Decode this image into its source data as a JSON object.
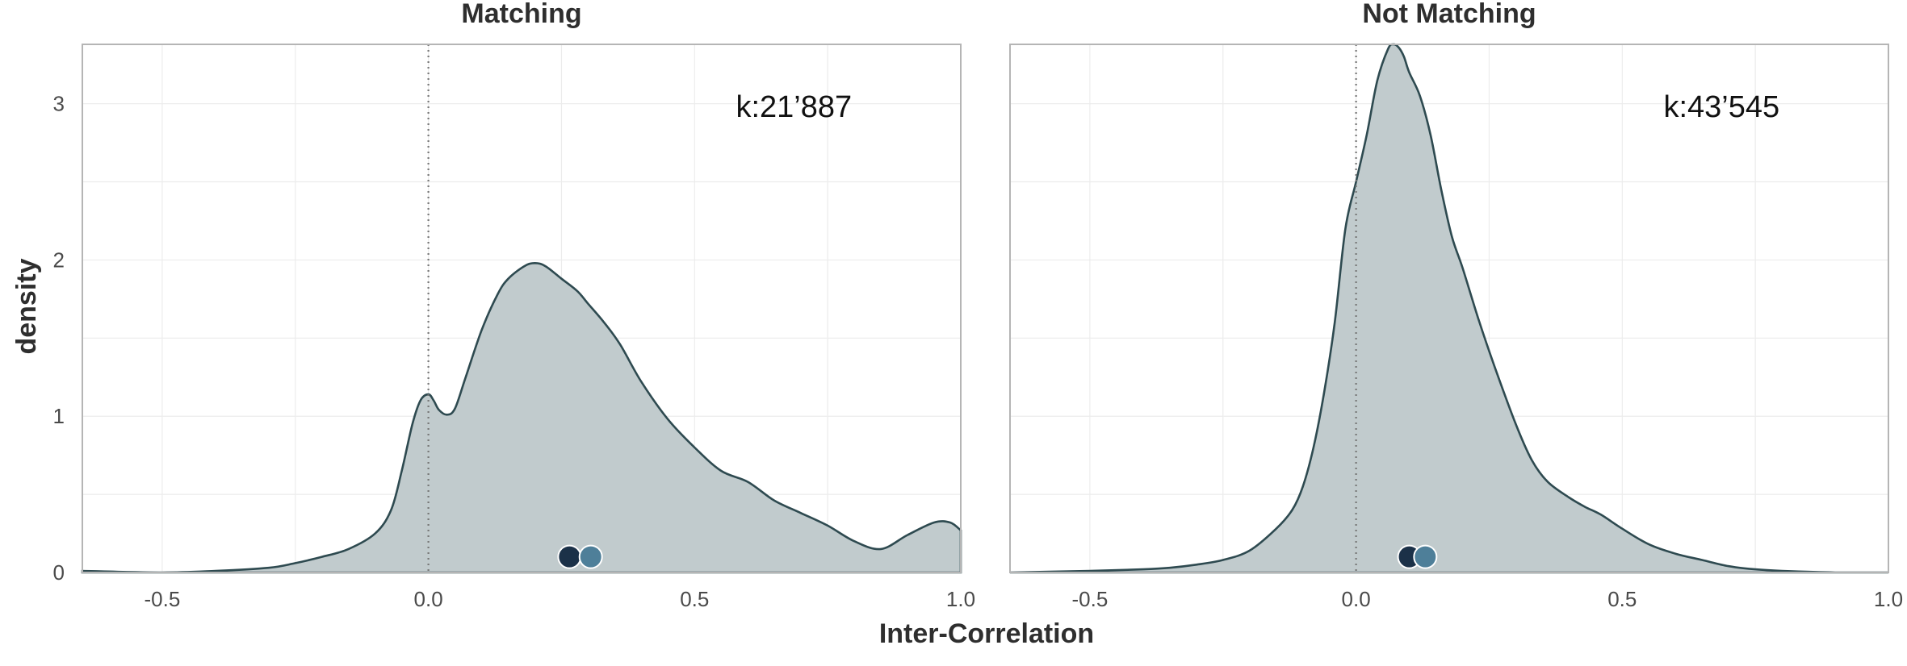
{
  "chart_data": {
    "type": "area",
    "xlabel": "Inter-Correlation",
    "ylabel": "density",
    "xlim": [
      -0.65,
      1.0
    ],
    "ylim": [
      0,
      3.38
    ],
    "x_ticks": [
      "-0.5",
      "0.0",
      "0.5",
      "1.0"
    ],
    "x_tick_values": [
      -0.5,
      0.0,
      0.5,
      1.0
    ],
    "y_ticks": [
      "0",
      "1",
      "2",
      "3"
    ],
    "y_tick_values": [
      0,
      1,
      2,
      3
    ],
    "reference_line": 0.0,
    "grid": true,
    "colors": {
      "fill": "#c1cbcd",
      "line": "#2e4a50",
      "dot_dark": "#1b3148",
      "dot_light": "#4e7f99"
    },
    "panels": [
      {
        "title": "Matching",
        "annotation": "k:21’887",
        "points": {
          "x": [
            0.265,
            0.305
          ],
          "y": [
            0.1,
            0.1
          ]
        },
        "density": {
          "x": [
            -0.65,
            -0.5,
            -0.4,
            -0.3,
            -0.25,
            -0.2,
            -0.15,
            -0.1,
            -0.07,
            -0.05,
            -0.03,
            -0.015,
            0.0,
            0.01,
            0.02,
            0.035,
            0.05,
            0.07,
            0.1,
            0.13,
            0.15,
            0.18,
            0.2,
            0.22,
            0.25,
            0.28,
            0.3,
            0.33,
            0.36,
            0.4,
            0.45,
            0.5,
            0.55,
            0.6,
            0.65,
            0.7,
            0.75,
            0.8,
            0.85,
            0.9,
            0.95,
            0.98,
            1.0
          ],
          "y": [
            0.01,
            0.0,
            0.01,
            0.03,
            0.06,
            0.1,
            0.15,
            0.25,
            0.4,
            0.65,
            0.95,
            1.1,
            1.14,
            1.1,
            1.04,
            1.01,
            1.05,
            1.25,
            1.55,
            1.78,
            1.88,
            1.96,
            1.98,
            1.96,
            1.88,
            1.8,
            1.72,
            1.6,
            1.46,
            1.22,
            0.98,
            0.8,
            0.65,
            0.58,
            0.46,
            0.38,
            0.3,
            0.2,
            0.15,
            0.24,
            0.32,
            0.32,
            0.27
          ]
        }
      },
      {
        "title": "Not Matching",
        "annotation": "k:43’545",
        "points": {
          "x": [
            0.1,
            0.13
          ],
          "y": [
            0.1,
            0.1
          ]
        },
        "density": {
          "x": [
            -0.65,
            -0.5,
            -0.4,
            -0.35,
            -0.3,
            -0.25,
            -0.2,
            -0.15,
            -0.12,
            -0.1,
            -0.08,
            -0.06,
            -0.04,
            -0.02,
            0.0,
            0.02,
            0.04,
            0.06,
            0.07,
            0.08,
            0.09,
            0.1,
            0.12,
            0.14,
            0.16,
            0.18,
            0.2,
            0.23,
            0.26,
            0.3,
            0.33,
            0.36,
            0.4,
            0.43,
            0.46,
            0.5,
            0.55,
            0.6,
            0.65,
            0.7,
            0.75,
            0.8,
            0.9,
            1.0
          ],
          "y": [
            0.0,
            0.01,
            0.02,
            0.03,
            0.05,
            0.08,
            0.14,
            0.28,
            0.4,
            0.55,
            0.8,
            1.15,
            1.6,
            2.2,
            2.5,
            2.8,
            3.15,
            3.35,
            3.38,
            3.36,
            3.3,
            3.2,
            3.05,
            2.8,
            2.45,
            2.15,
            1.95,
            1.62,
            1.32,
            0.95,
            0.72,
            0.58,
            0.48,
            0.42,
            0.37,
            0.28,
            0.18,
            0.12,
            0.08,
            0.04,
            0.02,
            0.01,
            0.0,
            0.0
          ]
        }
      }
    ]
  }
}
